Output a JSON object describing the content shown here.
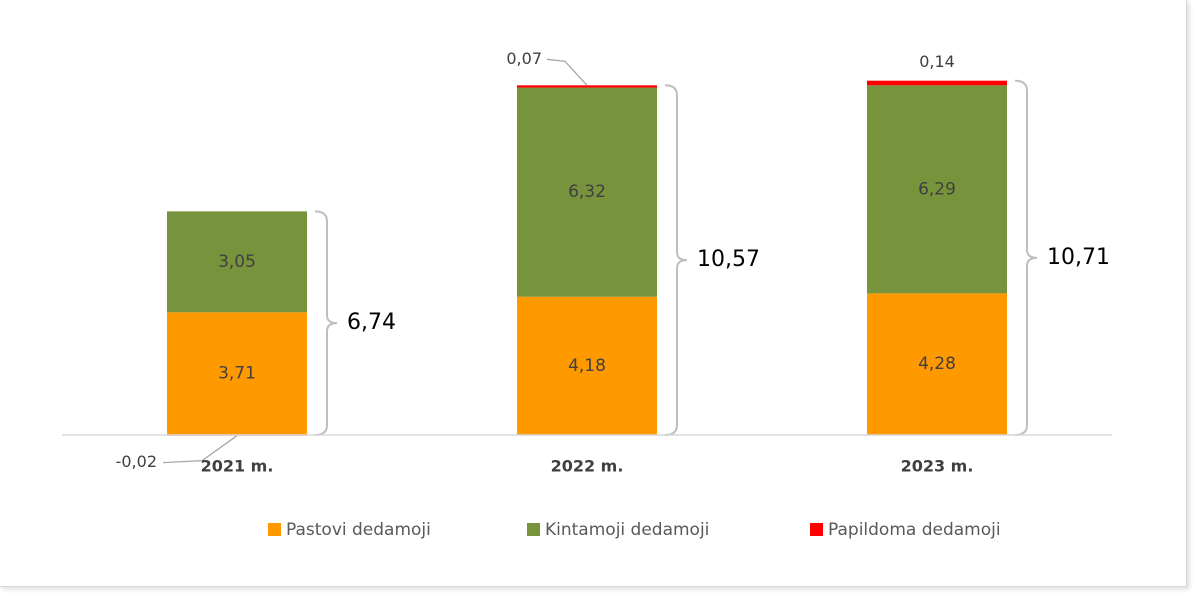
{
  "chart_data": {
    "type": "stacked_bar",
    "categories": [
      "2021 m.",
      "2022 m.",
      "2023 m."
    ],
    "series": [
      {
        "name": "Pastovi dedamoji",
        "color": "#ff9900",
        "values": [
          3.71,
          4.18,
          4.28
        ],
        "value_labels": [
          "3,71",
          "4,18",
          "4,28"
        ]
      },
      {
        "name": "Kintamoji dedamoji",
        "color": "#77933c",
        "values": [
          3.05,
          6.32,
          6.29
        ],
        "value_labels": [
          "3,05",
          "6,32",
          "6,29"
        ]
      },
      {
        "name": "Papildoma dedamoji",
        "color": "#ff0000",
        "values": [
          -0.02,
          0.07,
          0.14
        ],
        "value_labels": [
          "-0,02",
          "0,07",
          "0,14"
        ]
      }
    ],
    "totals": [
      6.74,
      10.57,
      10.71
    ],
    "total_labels": [
      "6,74",
      "10,57",
      "10,71"
    ],
    "ylim": [
      0,
      12
    ],
    "legend": "bottom"
  }
}
